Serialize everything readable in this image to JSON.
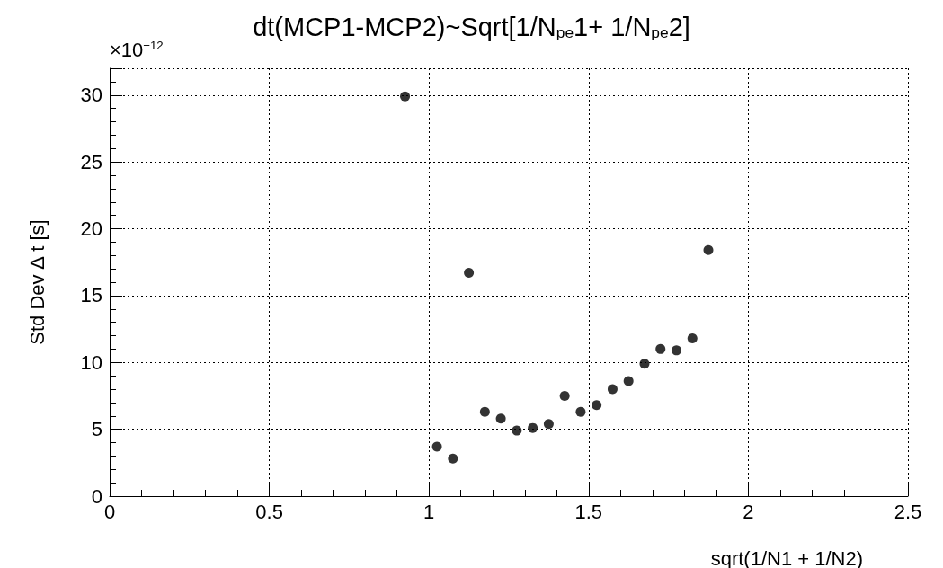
{
  "chart_data": {
    "type": "scatter",
    "title": "dt(MCP1-MCP2)~Sqrt[1/N$_{pe}$1+ 1/N$_{pe}$2]",
    "xlabel": "sqrt(1/N1 + 1/N2)",
    "ylabel": "Std Dev ∆ t [s]",
    "annotations": [
      "×10$^{−12}$"
    ],
    "x": [
      0.925,
      1.025,
      1.075,
      1.125,
      1.175,
      1.225,
      1.275,
      1.325,
      1.375,
      1.425,
      1.475,
      1.525,
      1.575,
      1.625,
      1.675,
      1.725,
      1.775,
      1.825,
      1.875
    ],
    "series": [
      {
        "color": "#000000",
        "values": [
          29.9,
          3.7,
          2.8,
          16.7,
          6.3,
          5.8,
          4.9,
          5.1,
          5.4,
          7.5,
          6.3,
          6.8,
          8.0,
          8.6,
          9.9,
          11.0,
          10.9,
          11.8,
          18.4
        ]
      }
    ],
    "xlim": [
      0,
      2.5
    ],
    "xticks": [
      0,
      0.5,
      1,
      1.5,
      2,
      2.5
    ],
    "ylim": [
      0,
      32
    ],
    "yticks": [
      0,
      5,
      10,
      15,
      20,
      25,
      30
    ],
    "grid": true,
    "marker": "circle"
  }
}
